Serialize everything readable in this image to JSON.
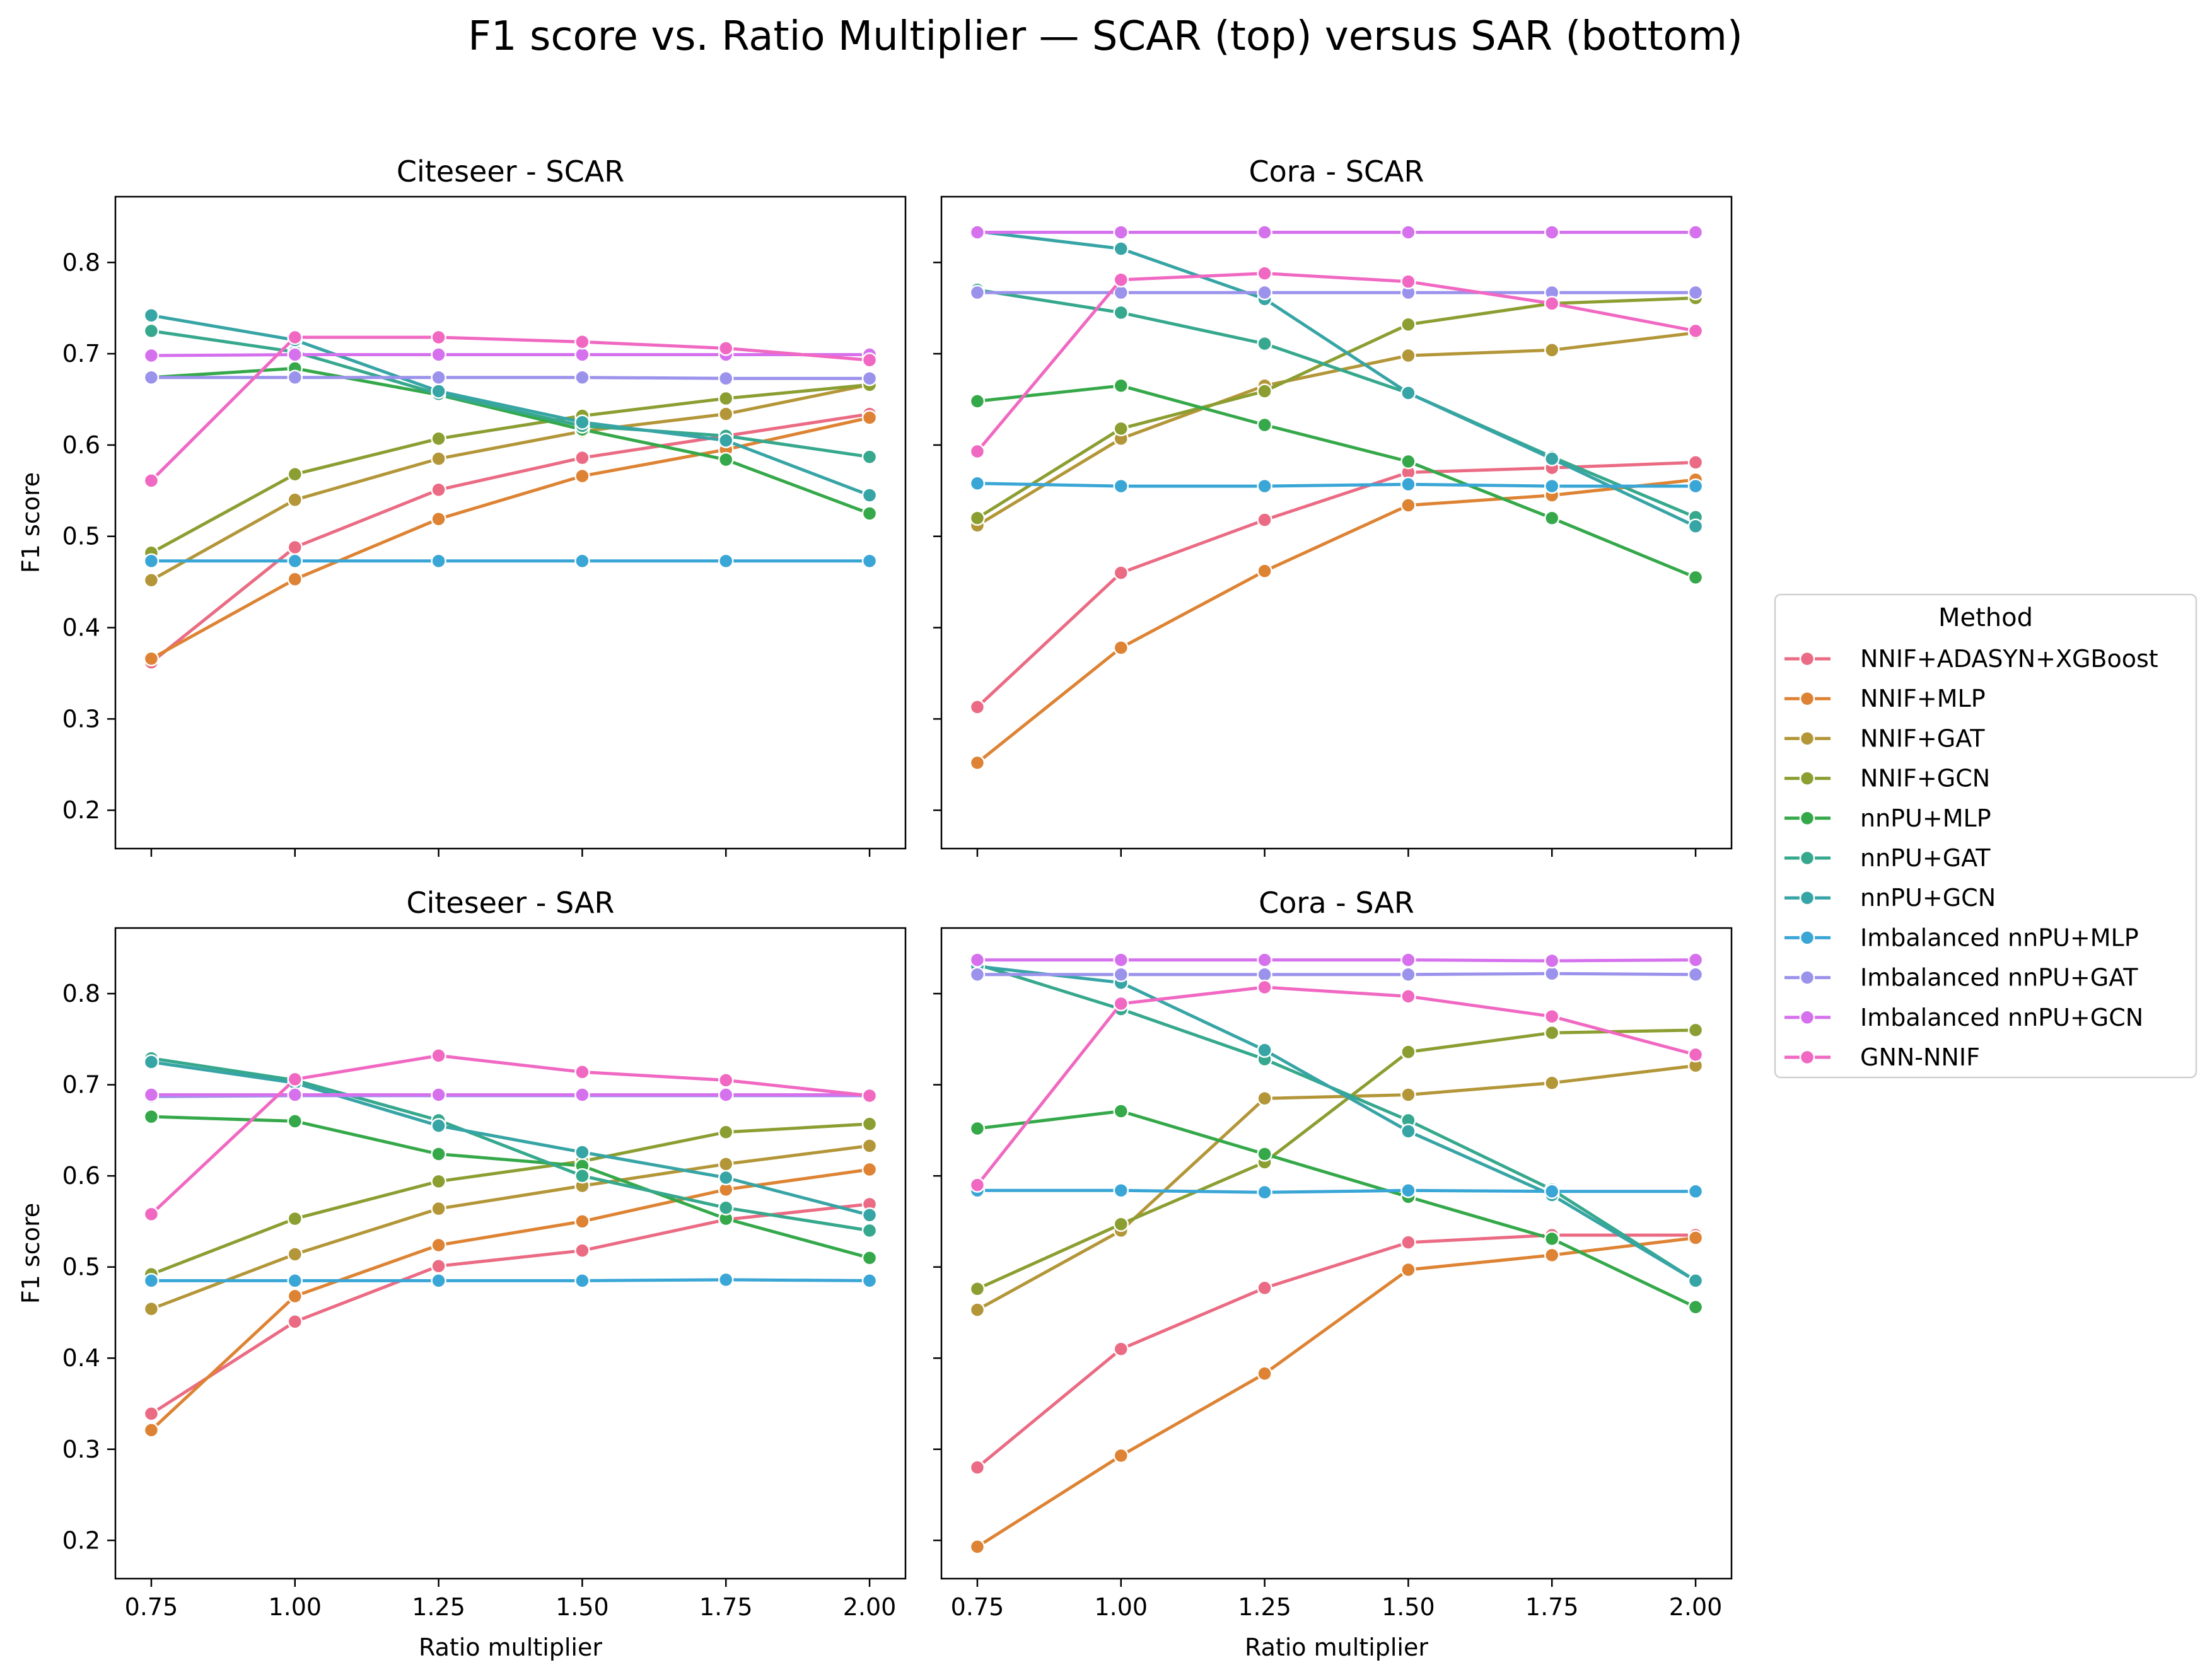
{
  "figure": {
    "title": "F1 score vs. Ratio Multiplier — SCAR (top) versus SAR (bottom)"
  },
  "legend": {
    "title": "Method"
  },
  "chart_data": {
    "type": "line",
    "x": [
      0.75,
      1.0,
      1.25,
      1.5,
      1.75,
      2.0
    ],
    "x_tick_labels": [
      "0.75",
      "1.00",
      "1.25",
      "1.50",
      "1.75",
      "2.00"
    ],
    "y_ticks": [
      0.2,
      0.3,
      0.4,
      0.5,
      0.6,
      0.7,
      0.8
    ],
    "y_tick_labels": [
      "0.2",
      "0.3",
      "0.4",
      "0.5",
      "0.6",
      "0.7",
      "0.8"
    ],
    "ylim": [
      0.158,
      0.872
    ],
    "xlim": [
      0.6875,
      2.0625
    ],
    "xlabel": "Ratio multiplier",
    "ylabel": "F1 score",
    "sharex": true,
    "sharey": true,
    "grid": false,
    "legend_position": "right, outside",
    "methods": [
      {
        "name": "NNIF+ADASYN+XGBoost",
        "color": "#ea6b83"
      },
      {
        "name": "NNIF+MLP",
        "color": "#dd8333"
      },
      {
        "name": "NNIF+GAT",
        "color": "#b39638"
      },
      {
        "name": "NNIF+GCN",
        "color": "#8b9e31"
      },
      {
        "name": "nnPU+MLP",
        "color": "#35a84a"
      },
      {
        "name": "nnPU+GAT",
        "color": "#36a88d"
      },
      {
        "name": "nnPU+GCN",
        "color": "#37a4a5"
      },
      {
        "name": "Imbalanced nnPU+MLP",
        "color": "#39a6d6"
      },
      {
        "name": "Imbalanced nnPU+GAT",
        "color": "#9b92ec"
      },
      {
        "name": "Imbalanced nnPU+GCN",
        "color": "#d671ee"
      },
      {
        "name": "GNN-NNIF",
        "color": "#f068c2"
      }
    ],
    "panels": [
      {
        "title": "Citeseer  -  SCAR",
        "series": [
          {
            "name": "NNIF+ADASYN+XGBoost",
            "values": [
              0.362,
              0.488,
              0.551,
              0.586,
              0.61,
              0.634
            ]
          },
          {
            "name": "NNIF+MLP",
            "values": [
              0.366,
              0.453,
              0.519,
              0.566,
              0.595,
              0.63
            ]
          },
          {
            "name": "NNIF+GAT",
            "values": [
              0.452,
              0.54,
              0.585,
              0.615,
              0.634,
              0.666
            ]
          },
          {
            "name": "NNIF+GCN",
            "values": [
              0.482,
              0.568,
              0.607,
              0.632,
              0.651,
              0.666
            ]
          },
          {
            "name": "nnPU+MLP",
            "values": [
              0.674,
              0.684,
              0.655,
              0.617,
              0.584,
              0.525
            ]
          },
          {
            "name": "nnPU+GAT",
            "values": [
              0.725,
              0.702,
              0.656,
              0.621,
              0.61,
              0.587
            ]
          },
          {
            "name": "nnPU+GCN",
            "values": [
              0.742,
              0.715,
              0.659,
              0.625,
              0.605,
              0.545
            ]
          },
          {
            "name": "Imbalanced nnPU+MLP",
            "values": [
              0.473,
              0.473,
              0.473,
              0.473,
              0.473,
              0.473
            ]
          },
          {
            "name": "Imbalanced nnPU+GAT",
            "values": [
              0.674,
              0.674,
              0.674,
              0.674,
              0.673,
              0.673
            ]
          },
          {
            "name": "Imbalanced nnPU+GCN",
            "values": [
              0.698,
              0.699,
              0.699,
              0.699,
              0.699,
              0.699
            ]
          },
          {
            "name": "GNN-NNIF",
            "values": [
              0.561,
              0.718,
              0.718,
              0.713,
              0.706,
              0.693
            ]
          }
        ]
      },
      {
        "title": "Cora  -  SCAR",
        "series": [
          {
            "name": "NNIF+ADASYN+XGBoost",
            "values": [
              0.313,
              0.46,
              0.518,
              0.57,
              0.575,
              0.581
            ]
          },
          {
            "name": "NNIF+MLP",
            "values": [
              0.252,
              0.378,
              0.462,
              0.534,
              0.545,
              0.562
            ]
          },
          {
            "name": "NNIF+GAT",
            "values": [
              0.512,
              0.607,
              0.665,
              0.698,
              0.704,
              0.723
            ]
          },
          {
            "name": "NNIF+GCN",
            "values": [
              0.52,
              0.618,
              0.659,
              0.732,
              0.755,
              0.761
            ]
          },
          {
            "name": "nnPU+MLP",
            "values": [
              0.648,
              0.665,
              0.622,
              0.582,
              0.52,
              0.455
            ]
          },
          {
            "name": "nnPU+GAT",
            "values": [
              0.77,
              0.745,
              0.711,
              0.657,
              0.587,
              0.521
            ]
          },
          {
            "name": "nnPU+GCN",
            "values": [
              0.834,
              0.815,
              0.76,
              0.657,
              0.585,
              0.511
            ]
          },
          {
            "name": "Imbalanced nnPU+MLP",
            "values": [
              0.558,
              0.555,
              0.555,
              0.557,
              0.555,
              0.555
            ]
          },
          {
            "name": "Imbalanced nnPU+GAT",
            "values": [
              0.767,
              0.767,
              0.767,
              0.767,
              0.767,
              0.767
            ]
          },
          {
            "name": "Imbalanced nnPU+GCN",
            "values": [
              0.833,
              0.833,
              0.833,
              0.833,
              0.833,
              0.833
            ]
          },
          {
            "name": "GNN-NNIF",
            "values": [
              0.593,
              0.781,
              0.788,
              0.779,
              0.755,
              0.725
            ]
          }
        ]
      },
      {
        "title": "Citeseer  -  SAR",
        "series": [
          {
            "name": "NNIF+ADASYN+XGBoost",
            "values": [
              0.339,
              0.44,
              0.501,
              0.518,
              0.552,
              0.569
            ]
          },
          {
            "name": "NNIF+MLP",
            "values": [
              0.321,
              0.468,
              0.524,
              0.55,
              0.585,
              0.607
            ]
          },
          {
            "name": "NNIF+GAT",
            "values": [
              0.454,
              0.514,
              0.564,
              0.589,
              0.613,
              0.633
            ]
          },
          {
            "name": "NNIF+GCN",
            "values": [
              0.492,
              0.553,
              0.594,
              0.616,
              0.648,
              0.657
            ]
          },
          {
            "name": "nnPU+MLP",
            "values": [
              0.665,
              0.66,
              0.624,
              0.611,
              0.553,
              0.51
            ]
          },
          {
            "name": "nnPU+GAT",
            "values": [
              0.729,
              0.705,
              0.661,
              0.6,
              0.565,
              0.54
            ]
          },
          {
            "name": "nnPU+GCN",
            "values": [
              0.725,
              0.702,
              0.655,
              0.626,
              0.598,
              0.557
            ]
          },
          {
            "name": "Imbalanced nnPU+MLP",
            "values": [
              0.485,
              0.485,
              0.485,
              0.485,
              0.486,
              0.485
            ]
          },
          {
            "name": "Imbalanced nnPU+GAT",
            "values": [
              0.687,
              0.688,
              0.688,
              0.688,
              0.688,
              0.688
            ]
          },
          {
            "name": "Imbalanced nnPU+GCN",
            "values": [
              0.689,
              0.689,
              0.689,
              0.689,
              0.689,
              0.689
            ]
          },
          {
            "name": "GNN-NNIF",
            "values": [
              0.558,
              0.706,
              0.732,
              0.714,
              0.705,
              0.688
            ]
          }
        ]
      },
      {
        "title": "Cora  -  SAR",
        "series": [
          {
            "name": "NNIF+ADASYN+XGBoost",
            "values": [
              0.28,
              0.41,
              0.477,
              0.527,
              0.535,
              0.535
            ]
          },
          {
            "name": "NNIF+MLP",
            "values": [
              0.193,
              0.293,
              0.383,
              0.497,
              0.513,
              0.532
            ]
          },
          {
            "name": "NNIF+GAT",
            "values": [
              0.453,
              0.54,
              0.685,
              0.689,
              0.702,
              0.721
            ]
          },
          {
            "name": "NNIF+GCN",
            "values": [
              0.476,
              0.547,
              0.615,
              0.736,
              0.757,
              0.76
            ]
          },
          {
            "name": "nnPU+MLP",
            "values": [
              0.652,
              0.671,
              0.624,
              0.577,
              0.531,
              0.456
            ]
          },
          {
            "name": "nnPU+GAT",
            "values": [
              0.832,
              0.783,
              0.728,
              0.661,
              0.585,
              0.485
            ]
          },
          {
            "name": "nnPU+GCN",
            "values": [
              0.83,
              0.812,
              0.738,
              0.649,
              0.579,
              0.485
            ]
          },
          {
            "name": "Imbalanced nnPU+MLP",
            "values": [
              0.584,
              0.584,
              0.582,
              0.584,
              0.583,
              0.583
            ]
          },
          {
            "name": "Imbalanced nnPU+GAT",
            "values": [
              0.821,
              0.821,
              0.821,
              0.821,
              0.822,
              0.821
            ]
          },
          {
            "name": "Imbalanced nnPU+GCN",
            "values": [
              0.837,
              0.837,
              0.837,
              0.837,
              0.836,
              0.837
            ]
          },
          {
            "name": "GNN-NNIF",
            "values": [
              0.59,
              0.789,
              0.807,
              0.797,
              0.775,
              0.733
            ]
          }
        ]
      }
    ]
  }
}
